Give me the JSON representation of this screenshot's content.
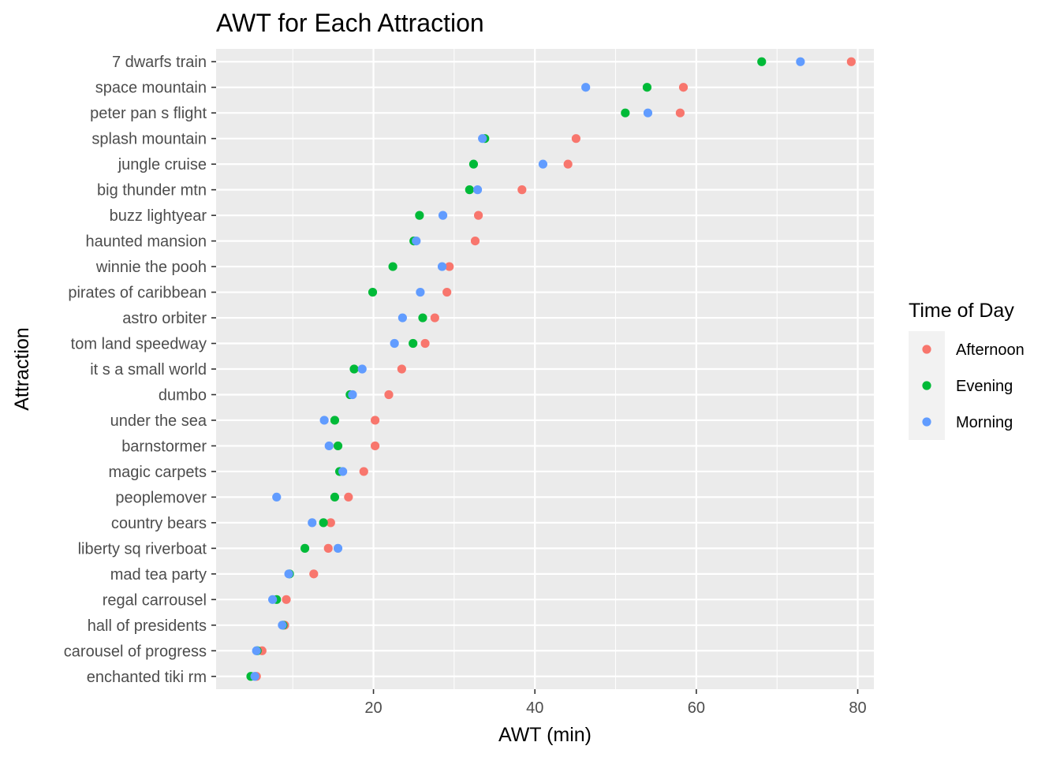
{
  "chart_data": {
    "type": "scatter",
    "title": "AWT for Each Attraction",
    "xlabel": "AWT (min)",
    "ylabel": "Attraction",
    "xlim": [
      0.5,
      82
    ],
    "xticks": [
      20,
      40,
      60,
      80
    ],
    "grid": true,
    "legend": {
      "title": "Time of Day",
      "position": "right"
    },
    "categories": [
      "7 dwarfs train",
      "space mountain",
      "peter pan s flight",
      "splash mountain",
      "jungle cruise",
      "big thunder mtn",
      "buzz lightyear",
      "haunted mansion",
      "winnie the pooh",
      "pirates of caribbean",
      "astro orbiter",
      "tom land speedway",
      "it s a small world",
      "dumbo",
      "under the sea",
      "barnstormer",
      "magic carpets",
      "peoplemover",
      "country bears",
      "liberty sq riverboat",
      "mad tea party",
      "regal carrousel",
      "hall of presidents",
      "carousel of progress",
      "enchanted tiki rm"
    ],
    "series": [
      {
        "name": "Afternoon",
        "color": "#F8766D",
        "values": [
          79.2,
          58.4,
          58.0,
          45.1,
          44.1,
          38.4,
          33.0,
          32.6,
          29.4,
          29.1,
          27.6,
          26.4,
          23.5,
          21.9,
          20.2,
          20.2,
          18.8,
          16.9,
          14.7,
          14.4,
          12.6,
          9.2,
          9.0,
          6.2,
          5.5
        ]
      },
      {
        "name": "Evening",
        "color": "#00BA38",
        "values": [
          68.1,
          53.9,
          51.2,
          33.8,
          32.4,
          31.9,
          25.7,
          25.0,
          22.4,
          19.9,
          26.1,
          24.9,
          17.6,
          17.1,
          15.2,
          15.6,
          15.8,
          15.2,
          13.8,
          11.5,
          9.6,
          8.0,
          8.8,
          5.6,
          4.8
        ]
      },
      {
        "name": "Morning",
        "color": "#619CFF",
        "values": [
          72.9,
          46.3,
          54.0,
          33.5,
          41.0,
          32.9,
          28.6,
          25.3,
          28.5,
          25.8,
          23.6,
          22.6,
          18.6,
          17.4,
          13.9,
          14.5,
          16.2,
          8.0,
          12.4,
          15.6,
          9.5,
          7.5,
          8.7,
          5.5,
          5.3
        ]
      }
    ]
  }
}
